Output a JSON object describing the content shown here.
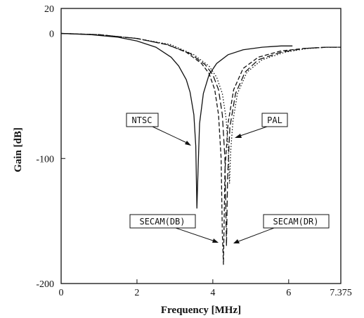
{
  "chart_data": {
    "type": "line",
    "title": "",
    "xlabel": "Frequency [MHz]",
    "ylabel": "Gain [dB]",
    "xlim": [
      0,
      7.375
    ],
    "ylim": [
      -200,
      20
    ],
    "x_ticks": [
      "0",
      "2",
      "4",
      "6",
      "7.375"
    ],
    "y_ticks": [
      "20",
      "0",
      "-100",
      "-200"
    ],
    "grid": false,
    "series": [
      {
        "name": "NTSC",
        "line_style": "solid",
        "points": [
          [
            0,
            0
          ],
          [
            0.8,
            -1
          ],
          [
            1.5,
            -3
          ],
          [
            2.0,
            -6
          ],
          [
            2.5,
            -11
          ],
          [
            2.9,
            -19
          ],
          [
            3.1,
            -26
          ],
          [
            3.3,
            -37
          ],
          [
            3.4,
            -47
          ],
          [
            3.5,
            -65
          ],
          [
            3.55,
            -90
          ],
          [
            3.58,
            -140
          ],
          [
            3.61,
            -110
          ],
          [
            3.65,
            -72
          ],
          [
            3.75,
            -48
          ],
          [
            3.9,
            -33
          ],
          [
            4.1,
            -24
          ],
          [
            4.4,
            -17
          ],
          [
            4.8,
            -13
          ],
          [
            5.3,
            -11
          ],
          [
            5.8,
            -10
          ],
          [
            6.1,
            -10
          ]
        ]
      },
      {
        "name": "SECAM(DB)",
        "line_style": "dashed",
        "points": [
          [
            0,
            0
          ],
          [
            1.0,
            -1
          ],
          [
            2.0,
            -4
          ],
          [
            2.8,
            -9
          ],
          [
            3.3,
            -15
          ],
          [
            3.7,
            -24
          ],
          [
            3.9,
            -32
          ],
          [
            4.05,
            -45
          ],
          [
            4.15,
            -65
          ],
          [
            4.22,
            -100
          ],
          [
            4.25,
            -160
          ],
          [
            4.28,
            -185
          ],
          [
            4.32,
            -110
          ],
          [
            4.4,
            -72
          ],
          [
            4.55,
            -45
          ],
          [
            4.8,
            -28
          ],
          [
            5.2,
            -19
          ],
          [
            5.8,
            -14
          ],
          [
            6.4,
            -12
          ],
          [
            7.0,
            -11
          ],
          [
            7.375,
            -11
          ]
        ]
      },
      {
        "name": "SECAM(DR)",
        "line_style": "long-dashed",
        "points": [
          [
            0,
            0
          ],
          [
            1.0,
            -1
          ],
          [
            2.0,
            -4
          ],
          [
            2.8,
            -9
          ],
          [
            3.4,
            -16
          ],
          [
            3.8,
            -25
          ],
          [
            4.0,
            -33
          ],
          [
            4.15,
            -45
          ],
          [
            4.25,
            -65
          ],
          [
            4.32,
            -100
          ],
          [
            4.36,
            -170
          ],
          [
            4.39,
            -115
          ],
          [
            4.45,
            -75
          ],
          [
            4.6,
            -48
          ],
          [
            4.85,
            -31
          ],
          [
            5.2,
            -21
          ],
          [
            5.8,
            -15
          ],
          [
            6.4,
            -12
          ],
          [
            7.0,
            -11
          ],
          [
            7.375,
            -11
          ]
        ]
      },
      {
        "name": "PAL",
        "line_style": "dotted",
        "points": [
          [
            0,
            0
          ],
          [
            1.0,
            -1
          ],
          [
            2.0,
            -4
          ],
          [
            2.9,
            -9
          ],
          [
            3.5,
            -17
          ],
          [
            3.9,
            -26
          ],
          [
            4.1,
            -35
          ],
          [
            4.25,
            -48
          ],
          [
            4.35,
            -68
          ],
          [
            4.41,
            -95
          ],
          [
            4.44,
            -120
          ],
          [
            4.47,
            -95
          ],
          [
            4.53,
            -70
          ],
          [
            4.65,
            -48
          ],
          [
            4.9,
            -31
          ],
          [
            5.3,
            -21
          ],
          [
            5.9,
            -15
          ],
          [
            6.5,
            -12
          ],
          [
            7.0,
            -11
          ],
          [
            7.375,
            -11
          ]
        ]
      }
    ],
    "annotations": [
      {
        "text": "NTSC"
      },
      {
        "text": "PAL"
      },
      {
        "text": "SECAM(DB)"
      },
      {
        "text": "SECAM(DR)"
      }
    ]
  }
}
